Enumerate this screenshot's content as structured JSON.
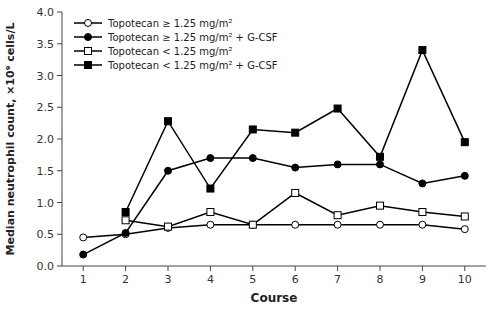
{
  "chart_data": {
    "type": "line",
    "xlabel": "Course",
    "ylabel": "Median neutrophil count, ×10⁹ cells/L",
    "x": [
      1,
      2,
      3,
      4,
      5,
      6,
      7,
      8,
      9,
      10
    ],
    "series": [
      {
        "name": "Topotecan ≥ 1.25 mg/m²",
        "color": "#000000",
        "marker": "circle-open",
        "line_style": "solid",
        "values": [
          0.45,
          0.5,
          0.6,
          0.65,
          0.65,
          0.65,
          0.65,
          0.65,
          0.65,
          0.58
        ]
      },
      {
        "name": "Topotecan ≥ 1.25 mg/m² + G-CSF",
        "color": "#000000",
        "marker": "circle",
        "line_style": "solid",
        "values": [
          0.18,
          0.52,
          1.5,
          1.7,
          1.7,
          1.55,
          1.6,
          1.6,
          1.3,
          1.42
        ]
      },
      {
        "name": "Topotecan < 1.25 mg/m²",
        "color": "#000000",
        "marker": "square-open",
        "line_style": "solid",
        "values": [
          null,
          0.72,
          0.62,
          0.85,
          0.65,
          1.15,
          0.8,
          0.95,
          0.85,
          0.78
        ]
      },
      {
        "name": "Topotecan < 1.25 mg/m² + G-CSF",
        "color": "#000000",
        "marker": "square",
        "line_style": "solid",
        "values": [
          null,
          0.85,
          2.28,
          1.22,
          2.15,
          2.1,
          2.48,
          1.72,
          3.4,
          1.95
        ]
      }
    ],
    "xlim": [
      0.5,
      10.5
    ],
    "xticks": [
      1,
      2,
      3,
      4,
      5,
      6,
      7,
      8,
      9,
      10
    ],
    "ylim": [
      0,
      4
    ],
    "yticks": [
      {
        "value": 0,
        "label": "0.0"
      },
      {
        "value": 0.5,
        "label": "0.5"
      },
      {
        "value": 1,
        "label": "1.0"
      },
      {
        "value": 1.5,
        "label": "1.5"
      },
      {
        "value": 2,
        "label": "2.0"
      },
      {
        "value": 2.5,
        "label": "2.5"
      },
      {
        "value": 3,
        "label": "3.0"
      },
      {
        "value": 3.5,
        "label": "3.5"
      },
      {
        "value": 4,
        "label": "4.0"
      }
    ],
    "grid": false,
    "legend": "top-left"
  }
}
